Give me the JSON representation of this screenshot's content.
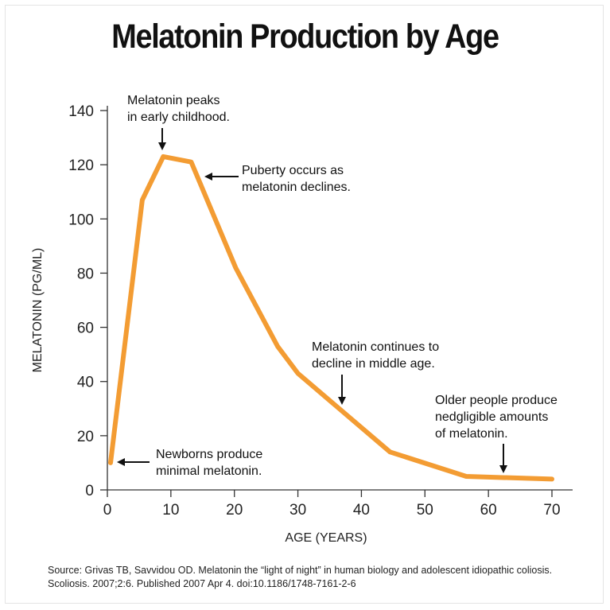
{
  "chart_data": {
    "type": "line",
    "title": "Melatonin Production by Age",
    "xlabel": "AGE (YEARS)",
    "ylabel": "MELATONIN (PG/ML)",
    "xlim": [
      0,
      70
    ],
    "ylim": [
      0,
      140
    ],
    "xticks": [
      0,
      10,
      20,
      30,
      40,
      50,
      60,
      70
    ],
    "yticks": [
      0,
      20,
      40,
      60,
      80,
      100,
      120,
      140
    ],
    "line_color": "#f39c33",
    "series": [
      {
        "name": "Melatonin",
        "x": [
          0.5,
          5.5,
          8.8,
          13.2,
          20.2,
          26.8,
          30,
          36,
          44.5,
          56.5,
          70
        ],
        "y": [
          10,
          107,
          123,
          121,
          82,
          53,
          43,
          31,
          14,
          5,
          4
        ]
      }
    ],
    "annotations": [
      {
        "id": "peak",
        "lines": [
          "Melatonin peaks",
          "in early childhood."
        ],
        "target": [
          8.8,
          123
        ],
        "arrow": "down"
      },
      {
        "id": "puberty",
        "lines": [
          "Puberty occurs as",
          "melatonin declines."
        ],
        "target": [
          13.5,
          115
        ],
        "arrow": "left"
      },
      {
        "id": "middle",
        "lines": [
          "Melatonin continues to",
          "decline in middle age."
        ],
        "target": [
          36.8,
          32
        ],
        "arrow": "down"
      },
      {
        "id": "older",
        "lines": [
          "Older people produce",
          "nedgligible amounts",
          "of melatonin."
        ],
        "target": [
          62.2,
          5
        ],
        "arrow": "down"
      },
      {
        "id": "newborn",
        "lines": [
          "Newborns produce",
          "minimal melatonin."
        ],
        "target": [
          1.5,
          10
        ],
        "arrow": "left"
      }
    ]
  },
  "source": "Source: Grivas TB, Savvidou OD. Melatonin the “light of night” in human biology and adolescent idiopathic coliosis. Scoliosis. 2007;2:6. Published 2007 Apr 4. doi:10.1186/1748-7161-2-6"
}
